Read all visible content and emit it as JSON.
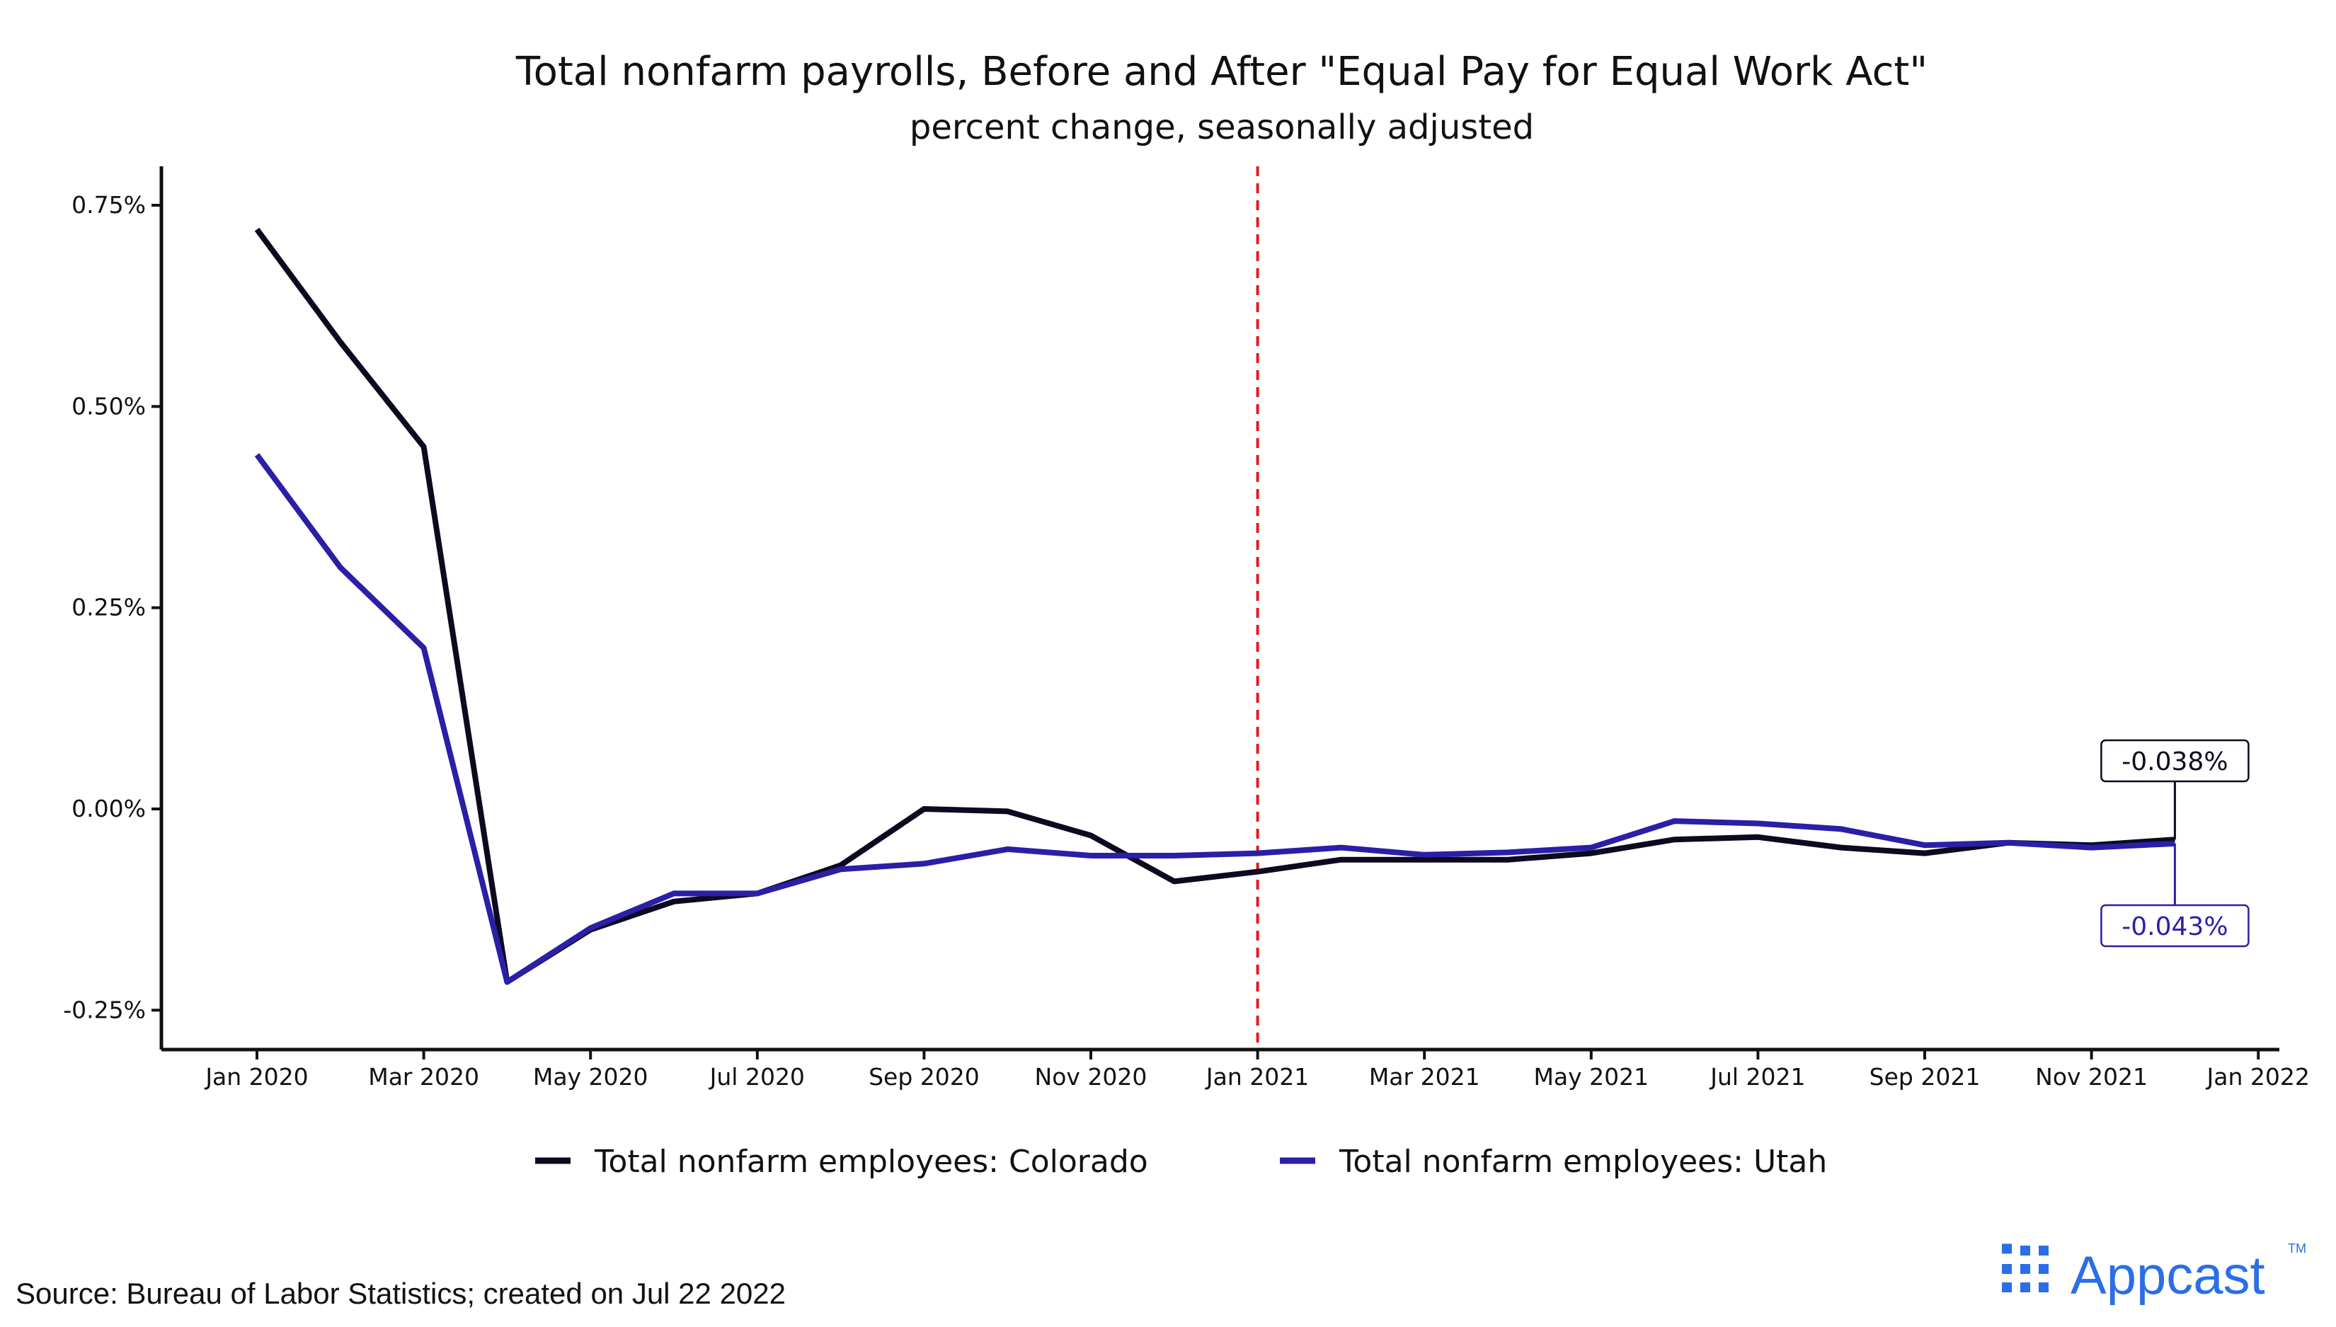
{
  "chart_data": {
    "type": "line",
    "title": "Total nonfarm payrolls, Before and After \"Equal Pay for Equal Work Act\"",
    "subtitle": "percent change, seasonally adjusted",
    "xlabel": "",
    "ylabel": "",
    "x": [
      "2020-01",
      "2020-02",
      "2020-03",
      "2020-04",
      "2020-05",
      "2020-06",
      "2020-07",
      "2020-08",
      "2020-09",
      "2020-10",
      "2020-11",
      "2020-12",
      "2021-01",
      "2021-02",
      "2021-03",
      "2021-04",
      "2021-05",
      "2021-06",
      "2021-07",
      "2021-08",
      "2021-09",
      "2021-10",
      "2021-11",
      "2021-12"
    ],
    "x_ticks": [
      "2020-01",
      "2020-03",
      "2020-05",
      "2020-07",
      "2020-09",
      "2020-11",
      "2021-01",
      "2021-03",
      "2021-05",
      "2021-07",
      "2021-09",
      "2021-11",
      "2022-01"
    ],
    "x_tick_labels": [
      "Jan 2020",
      "Mar 2020",
      "May 2020",
      "Jul 2020",
      "Sep 2020",
      "Nov 2020",
      "Jan 2021",
      "Mar 2021",
      "May 2021",
      "Jul 2021",
      "Sep 2021",
      "Nov 2021",
      "Jan 2022"
    ],
    "xlim": [
      "2019-12",
      "2022-01"
    ],
    "y_ticks": [
      0.75,
      0.5,
      0.25,
      0.0,
      -0.25
    ],
    "y_tick_labels": [
      "0.75%",
      "0.50%",
      "0.25%",
      "0.00%",
      "-0.25%"
    ],
    "ylim": [
      -0.3,
      0.8
    ],
    "grid": false,
    "legend_position": "bottom",
    "series": [
      {
        "name": "Total nonfarm employees: Colorado",
        "color": "#0c0a1e",
        "values": [
          0.72,
          0.58,
          0.45,
          -0.215,
          -0.15,
          -0.115,
          -0.105,
          -0.07,
          0.0,
          -0.003,
          -0.033,
          -0.09,
          -0.078,
          -0.063,
          -0.063,
          -0.063,
          -0.055,
          -0.038,
          -0.035,
          -0.048,
          -0.055,
          -0.042,
          -0.045,
          -0.038
        ]
      },
      {
        "name": "Total nonfarm employees: Utah",
        "color": "#2a1fa6",
        "values": [
          0.44,
          0.3,
          0.2,
          -0.215,
          -0.148,
          -0.105,
          -0.105,
          -0.075,
          -0.068,
          -0.05,
          -0.058,
          -0.058,
          -0.055,
          -0.048,
          -0.057,
          -0.054,
          -0.048,
          -0.015,
          -0.018,
          -0.025,
          -0.045,
          -0.042,
          -0.048,
          -0.043
        ]
      }
    ],
    "reference_lines": [
      {
        "axis": "x",
        "at": "2021-01",
        "color": "#e31a1c",
        "style": "dashed"
      }
    ],
    "end_labels": [
      {
        "series": "Total nonfarm employees: Colorado",
        "text": "-0.038%"
      },
      {
        "series": "Total nonfarm employees: Utah",
        "text": "-0.043%"
      }
    ]
  },
  "footer": {
    "source": "Source: Bureau of Labor Statistics; created on Jul 22 2022",
    "brand": "Appcast",
    "brand_tm": "TM",
    "brand_color": "#2a6ee8"
  }
}
